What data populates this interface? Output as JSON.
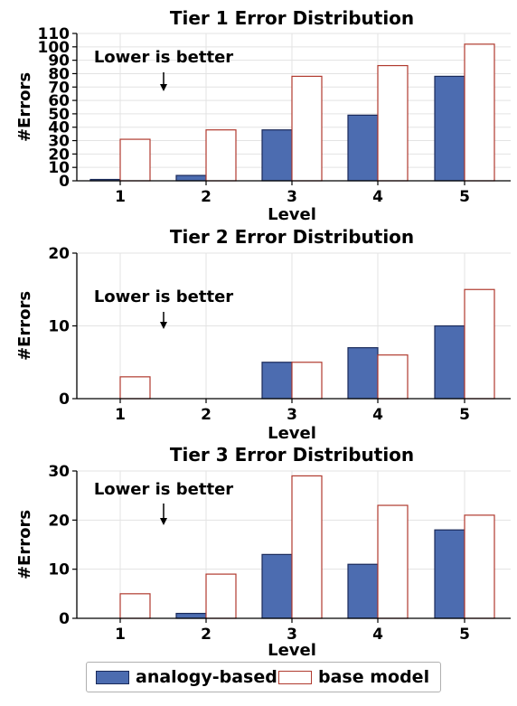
{
  "legend": {
    "items": [
      {
        "label": "analogy-based",
        "color": "#4c6cb0",
        "edge": "#1a2a5a"
      },
      {
        "label": "base model",
        "color": "#ffffff",
        "edge": "#b03a2e"
      }
    ]
  },
  "chart_data": [
    {
      "type": "bar",
      "title": "Tier 1 Error Distribution",
      "xlabel": "Level",
      "ylabel": "#Errors",
      "annotation": "Lower is better",
      "categories": [
        "1",
        "2",
        "3",
        "4",
        "5"
      ],
      "ylim": [
        0,
        110
      ],
      "yticks": [
        0,
        10,
        20,
        30,
        40,
        50,
        60,
        70,
        80,
        90,
        100,
        110
      ],
      "grid": true,
      "series": [
        {
          "name": "analogy-based",
          "values": [
            1,
            4,
            38,
            49,
            78
          ]
        },
        {
          "name": "base model",
          "values": [
            31,
            38,
            78,
            86,
            102
          ]
        }
      ]
    },
    {
      "type": "bar",
      "title": "Tier 2 Error Distribution",
      "xlabel": "Level",
      "ylabel": "#Errors",
      "annotation": "Lower is better",
      "categories": [
        "1",
        "2",
        "3",
        "4",
        "5"
      ],
      "ylim": [
        0,
        20
      ],
      "yticks": [
        0,
        10,
        20
      ],
      "grid": true,
      "series": [
        {
          "name": "analogy-based",
          "values": [
            0,
            0,
            5,
            7,
            10
          ]
        },
        {
          "name": "base model",
          "values": [
            3,
            0,
            5,
            6,
            15
          ]
        }
      ]
    },
    {
      "type": "bar",
      "title": "Tier 3 Error Distribution",
      "xlabel": "Level",
      "ylabel": "#Errors",
      "annotation": "Lower is better",
      "categories": [
        "1",
        "2",
        "3",
        "4",
        "5"
      ],
      "ylim": [
        0,
        30
      ],
      "yticks": [
        0,
        10,
        20,
        30
      ],
      "grid": true,
      "series": [
        {
          "name": "analogy-based",
          "values": [
            0,
            1,
            13,
            11,
            18
          ]
        },
        {
          "name": "base model",
          "values": [
            5,
            9,
            29,
            23,
            21
          ]
        }
      ]
    }
  ]
}
